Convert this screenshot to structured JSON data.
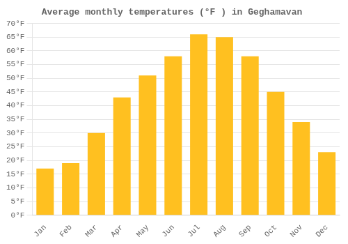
{
  "chart_data": {
    "type": "bar",
    "title": "Average monthly temperatures (°F ) in Geghamavan",
    "categories": [
      "Jan",
      "Feb",
      "Mar",
      "Apr",
      "May",
      "Jun",
      "Jul",
      "Aug",
      "Sep",
      "Oct",
      "Nov",
      "Dec"
    ],
    "values": [
      17,
      19,
      30,
      43,
      51,
      58,
      66,
      65,
      58,
      45,
      34,
      23
    ],
    "color": "#FFC020",
    "ylim": [
      0,
      70
    ],
    "yticks": [
      {
        "value": 0,
        "label": "0°F"
      },
      {
        "value": 5,
        "label": "5°F"
      },
      {
        "value": 10,
        "label": "10°F"
      },
      {
        "value": 15,
        "label": "15°F"
      },
      {
        "value": 20,
        "label": "20°F"
      },
      {
        "value": 25,
        "label": "25°F"
      },
      {
        "value": 30,
        "label": "30°F"
      },
      {
        "value": 35,
        "label": "35°F"
      },
      {
        "value": 40,
        "label": "40°F"
      },
      {
        "value": 45,
        "label": "45°F"
      },
      {
        "value": 50,
        "label": "50°F"
      },
      {
        "value": 55,
        "label": "55°F"
      },
      {
        "value": 60,
        "label": "60°F"
      },
      {
        "value": 65,
        "label": "65°F"
      },
      {
        "value": 70,
        "label": "70°F"
      }
    ],
    "grid": true
  }
}
